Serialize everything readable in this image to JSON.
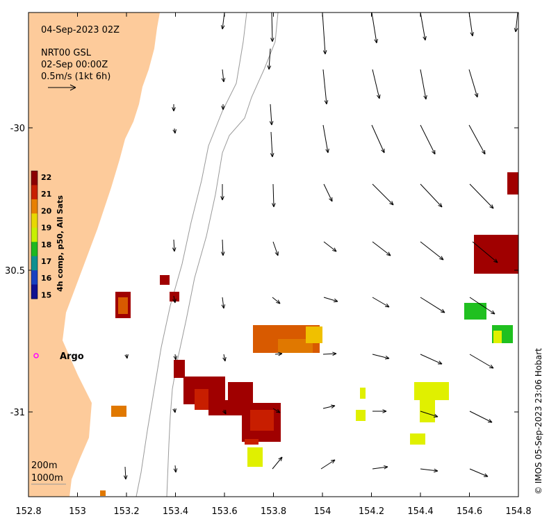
{
  "header": {
    "date": "04-Sep-2023 02Z",
    "product": "NRT00 GSL",
    "product_time": "02-Sep 00:00Z",
    "scale_label": "0.5m/s (1kt 6h)"
  },
  "colorbar": {
    "label": "4h comp, p50, All Sats",
    "ticks": [
      "22",
      "21",
      "20",
      "19",
      "18",
      "17",
      "16",
      "15"
    ],
    "colors": [
      "#8b0000",
      "#c82000",
      "#e88000",
      "#e8d800",
      "#c8f000",
      "#20b820",
      "#109090",
      "#1840c0",
      "#101090"
    ]
  },
  "axes": {
    "x_ticks": [
      "152.8",
      "153",
      "153.2",
      "153.4",
      "153.6",
      "153.8",
      "154",
      "154.2",
      "154.4",
      "154.6",
      "154.8"
    ],
    "y_ticks": [
      "-30",
      "30.5",
      "-31"
    ]
  },
  "argo": {
    "label": "Argo",
    "color": "#ff00ff"
  },
  "depth_labels": {
    "d200": "200m",
    "d1000": "1000m"
  },
  "credit": "© IMOS 05-Sep-2023 23:06 Hobart",
  "land_color": "#fdcb9b"
}
